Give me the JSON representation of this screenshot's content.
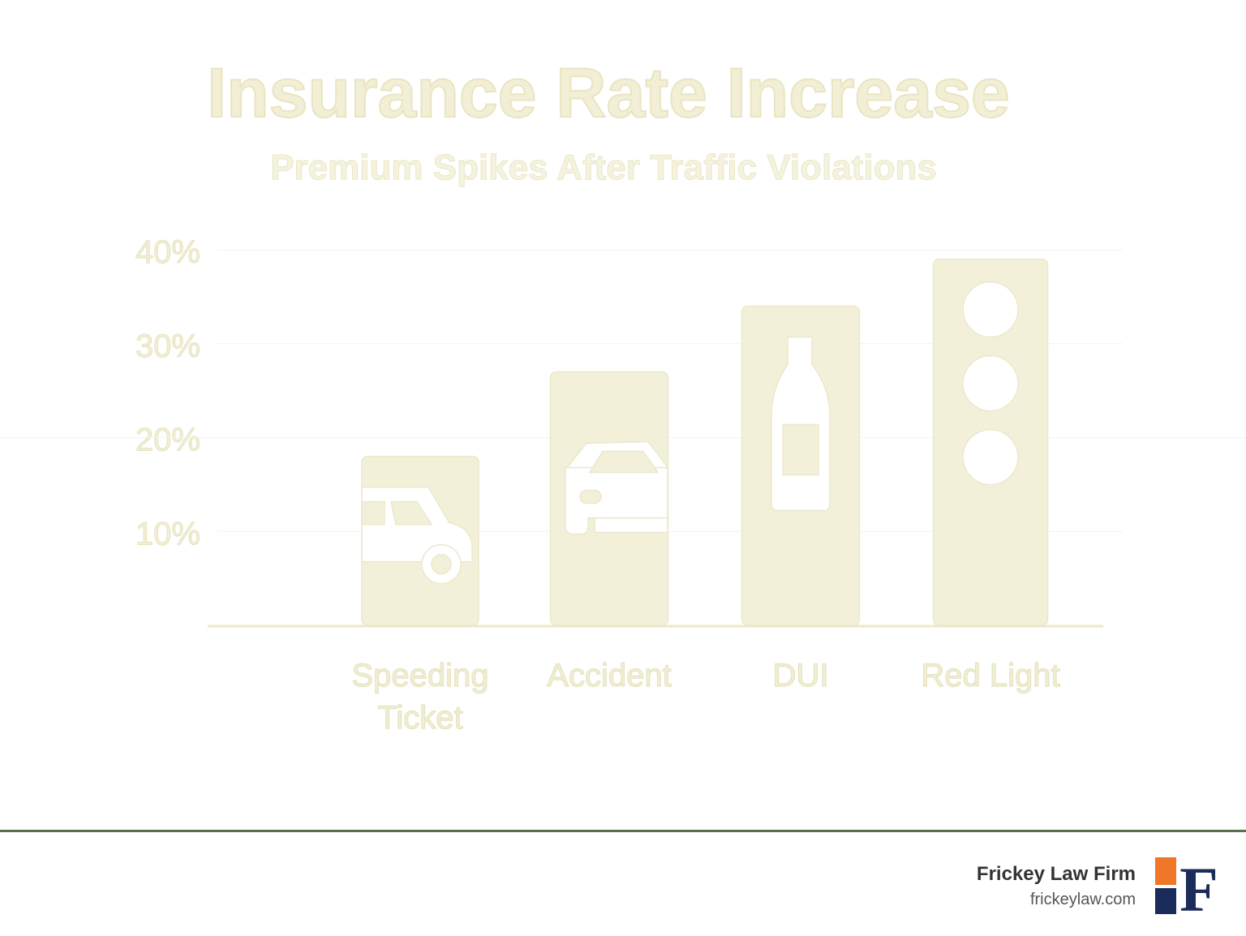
{
  "chart_data": {
    "type": "bar",
    "title": "Insurance Rate Increase",
    "subtitle": "Premium Spikes After Traffic Violations",
    "categories": [
      "Speeding Ticket",
      "Accident",
      "DUI",
      "Red Light"
    ],
    "category_lines": [
      [
        "Speeding",
        "Ticket"
      ],
      [
        "Accident"
      ],
      [
        "DUI"
      ],
      [
        "Red Light"
      ]
    ],
    "values": [
      18,
      27,
      34,
      39
    ],
    "bar_icons": [
      "car-side-icon",
      "car-front-icon",
      "bottle-icon",
      "traffic-light-icon"
    ],
    "yticks": [
      10,
      20,
      30,
      40
    ],
    "ytick_labels": [
      "10%",
      "20%",
      "30%",
      "40%"
    ],
    "ylim": [
      0,
      40
    ],
    "grid": true,
    "bar_color": "#f3f0d9",
    "text_color": "#f2efd6"
  },
  "footer": {
    "firm_name": "Frickey Law Firm",
    "url": "frickeylaw.com",
    "logo_letter": "F",
    "logo_colors": {
      "orange": "#f0762a",
      "navy": "#1b2b5a"
    }
  }
}
